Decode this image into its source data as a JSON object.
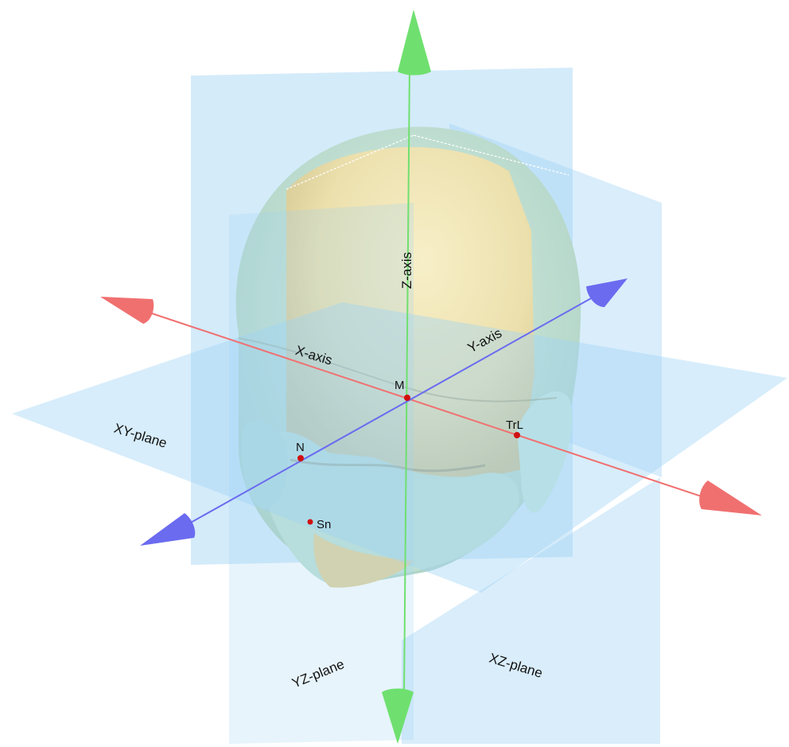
{
  "labels": {
    "z_axis": "Z-axis",
    "x_axis": "X-axis",
    "y_axis": "Y-axis",
    "xy_plane": "XY-plane",
    "yz_plane": "YZ-plane",
    "xz_plane": "XZ-plane",
    "landmark_m": "M",
    "landmark_n": "N",
    "landmark_trl": "TrL",
    "landmark_sn": "Sn"
  },
  "colors": {
    "x_axis": "#f07070",
    "y_axis": "#6b6bf0",
    "z_axis": "#6fe06f",
    "plane": "#9fd3f5",
    "head_face": "#f2e7b8",
    "head_side": "#c9e6d8",
    "landmark": "#d01010"
  }
}
